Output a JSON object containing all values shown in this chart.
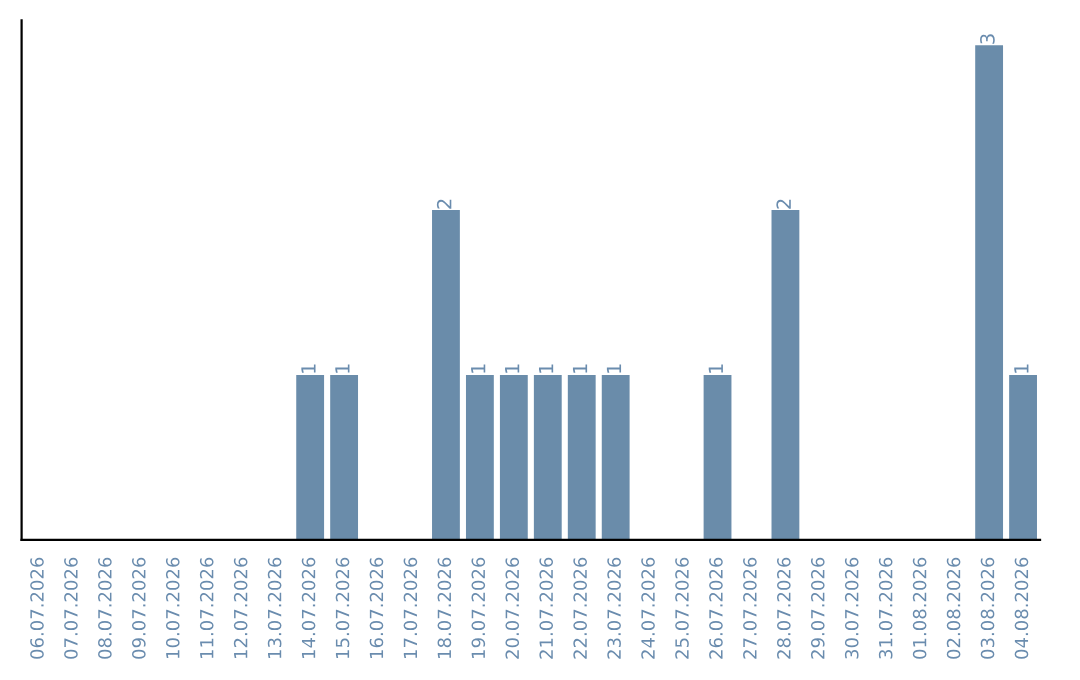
{
  "chart_data": {
    "type": "bar",
    "categories": [
      "06.07.2026",
      "07.07.2026",
      "08.07.2026",
      "09.07.2026",
      "10.07.2026",
      "11.07.2026",
      "12.07.2026",
      "13.07.2026",
      "14.07.2026",
      "15.07.2026",
      "16.07.2026",
      "17.07.2026",
      "18.07.2026",
      "19.07.2026",
      "20.07.2026",
      "21.07.2026",
      "22.07.2026",
      "23.07.2026",
      "24.07.2026",
      "25.07.2026",
      "26.07.2026",
      "27.07.2026",
      "28.07.2026",
      "29.07.2026",
      "30.07.2026",
      "31.07.2026",
      "01.08.2026",
      "02.08.2026",
      "03.08.2026",
      "04.08.2026"
    ],
    "values": [
      0,
      0,
      0,
      0,
      0,
      0,
      0,
      0,
      1,
      1,
      0,
      0,
      2,
      1,
      1,
      1,
      1,
      1,
      0,
      0,
      1,
      0,
      2,
      0,
      0,
      0,
      0,
      0,
      3,
      1
    ],
    "value_labels": [
      null,
      null,
      null,
      null,
      null,
      null,
      null,
      null,
      "1",
      "1",
      null,
      null,
      "2",
      "1",
      "1",
      "1",
      "1",
      "1",
      null,
      null,
      "1",
      null,
      "2",
      null,
      null,
      null,
      null,
      null,
      "3",
      "1"
    ],
    "color": "#6a8caa",
    "tick_labels": "x",
    "grid": false
  }
}
